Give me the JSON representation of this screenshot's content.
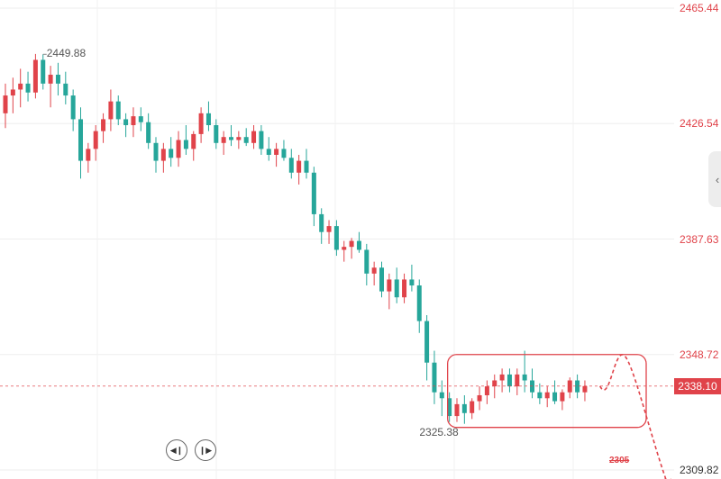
{
  "chart_data": {
    "type": "candlestick",
    "y_axis": {
      "position": "right",
      "ticks": [
        2465.44,
        2426.54,
        2387.63,
        2348.72,
        2309.82
      ],
      "ylim": [
        2309.82,
        2465.44
      ]
    },
    "last_price": 2338.1,
    "annotations": {
      "high_label": "2449.88",
      "low_label": "2325.38",
      "target_label": "2305"
    },
    "grid": true,
    "colors": {
      "up": "#e0434a",
      "down": "#26a69a",
      "accent": "#e0434a"
    },
    "candles": [
      [
        2430,
        2440,
        2425,
        2436
      ],
      [
        2436,
        2442,
        2430,
        2438
      ],
      [
        2438,
        2445,
        2432,
        2440
      ],
      [
        2440,
        2444,
        2434,
        2437
      ],
      [
        2437,
        2450,
        2435,
        2448
      ],
      [
        2448,
        2449.88,
        2438,
        2440
      ],
      [
        2440,
        2446,
        2432,
        2443
      ],
      [
        2443,
        2447,
        2436,
        2440
      ],
      [
        2440,
        2444,
        2433,
        2436
      ],
      [
        2436,
        2438,
        2424,
        2428
      ],
      [
        2428,
        2432,
        2408,
        2414
      ],
      [
        2414,
        2420,
        2410,
        2418
      ],
      [
        2418,
        2426,
        2414,
        2424
      ],
      [
        2424,
        2430,
        2420,
        2428
      ],
      [
        2428,
        2438,
        2424,
        2434
      ],
      [
        2434,
        2436,
        2426,
        2428
      ],
      [
        2428,
        2430,
        2422,
        2426
      ],
      [
        2426,
        2432,
        2422,
        2429
      ],
      [
        2429,
        2432,
        2424,
        2427
      ],
      [
        2427,
        2430,
        2418,
        2420
      ],
      [
        2420,
        2422,
        2410,
        2414
      ],
      [
        2414,
        2420,
        2410,
        2418
      ],
      [
        2418,
        2422,
        2412,
        2415
      ],
      [
        2415,
        2424,
        2412,
        2421
      ],
      [
        2421,
        2426,
        2416,
        2418
      ],
      [
        2418,
        2424,
        2414,
        2423
      ],
      [
        2423,
        2432,
        2420,
        2430
      ],
      [
        2430,
        2434,
        2424,
        2426
      ],
      [
        2426,
        2428,
        2418,
        2420
      ],
      [
        2420,
        2424,
        2416,
        2422
      ],
      [
        2422,
        2426,
        2419,
        2421
      ],
      [
        2421,
        2424,
        2418,
        2422
      ],
      [
        2422,
        2425,
        2419,
        2420
      ],
      [
        2420,
        2426,
        2418,
        2424
      ],
      [
        2424,
        2426,
        2416,
        2418
      ],
      [
        2418,
        2422,
        2414,
        2416
      ],
      [
        2416,
        2420,
        2412,
        2418
      ],
      [
        2418,
        2421,
        2414,
        2415
      ],
      [
        2415,
        2418,
        2408,
        2410
      ],
      [
        2410,
        2416,
        2406,
        2414
      ],
      [
        2414,
        2418,
        2408,
        2410
      ],
      [
        2410,
        2412,
        2392,
        2396
      ],
      [
        2396,
        2398,
        2386,
        2390
      ],
      [
        2390,
        2394,
        2386,
        2392
      ],
      [
        2392,
        2394,
        2382,
        2384
      ],
      [
        2384,
        2387,
        2380,
        2385
      ],
      [
        2385,
        2388,
        2381,
        2387
      ],
      [
        2387,
        2390,
        2383,
        2384
      ],
      [
        2384,
        2386,
        2372,
        2376
      ],
      [
        2376,
        2380,
        2372,
        2378
      ],
      [
        2378,
        2380,
        2368,
        2370
      ],
      [
        2370,
        2376,
        2364,
        2374
      ],
      [
        2374,
        2378,
        2366,
        2368
      ],
      [
        2368,
        2376,
        2366,
        2374
      ],
      [
        2374,
        2379,
        2370,
        2372
      ],
      [
        2372,
        2374,
        2356,
        2360
      ],
      [
        2360,
        2362,
        2340,
        2346
      ],
      [
        2346,
        2350,
        2332,
        2336
      ],
      [
        2336,
        2340,
        2328,
        2334
      ],
      [
        2334,
        2336,
        2326,
        2328
      ],
      [
        2328,
        2334,
        2326,
        2332
      ],
      [
        2332,
        2335,
        2325.38,
        2329
      ],
      [
        2329,
        2334,
        2327,
        2333
      ],
      [
        2333,
        2338,
        2330,
        2335
      ],
      [
        2335,
        2340,
        2332,
        2338
      ],
      [
        2338,
        2342,
        2334,
        2340
      ],
      [
        2340,
        2344,
        2336,
        2342
      ],
      [
        2342,
        2344,
        2336,
        2338
      ],
      [
        2338,
        2344,
        2335,
        2342
      ],
      [
        2342,
        2350,
        2336,
        2340
      ],
      [
        2340,
        2344,
        2334,
        2336
      ],
      [
        2336,
        2339,
        2332,
        2334
      ],
      [
        2334,
        2338,
        2331,
        2336
      ],
      [
        2336,
        2340,
        2332,
        2333
      ],
      [
        2333,
        2337,
        2330,
        2336
      ],
      [
        2336,
        2341,
        2334,
        2340
      ],
      [
        2340,
        2342,
        2334,
        2336
      ],
      [
        2336,
        2340,
        2333,
        2338.1
      ]
    ],
    "forecast": {
      "style": "dashed",
      "x_after_last": [
        2,
        5,
        8,
        11
      ],
      "values": [
        2338.1,
        2348.72,
        2326,
        2305
      ]
    }
  },
  "navigation": {
    "prev_icon": "skip-back-icon",
    "next_icon": "skip-forward-icon"
  },
  "side_panel": {
    "icon": "chevron-left-icon"
  }
}
